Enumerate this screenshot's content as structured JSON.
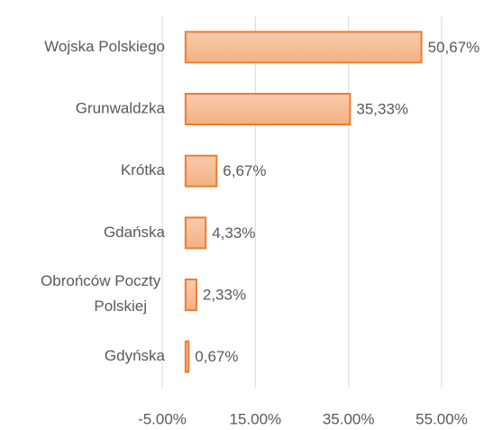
{
  "chart_data": {
    "type": "hbar",
    "categories": [
      "Wojska Polskiego",
      "Grunwaldzka",
      "Krótka",
      "Gdańska",
      "Obrońców Poczty Polskiej",
      "Gdyńska"
    ],
    "values": [
      50.67,
      35.33,
      6.67,
      4.33,
      2.33,
      0.67
    ],
    "value_labels": [
      "50,67%",
      "35,33%",
      "6,67%",
      "4,33%",
      "2,33%",
      "0,67%"
    ],
    "color": "#f5b896",
    "edge_color": "#ed7d31",
    "xlim": [
      -5,
      55
    ],
    "xticks": [
      {
        "value": -5,
        "label": "-5.00%"
      },
      {
        "value": 15,
        "label": "15.00%"
      },
      {
        "value": 35,
        "label": "35.00%"
      },
      {
        "value": 55,
        "label": "55.00%"
      }
    ],
    "grid": true
  }
}
